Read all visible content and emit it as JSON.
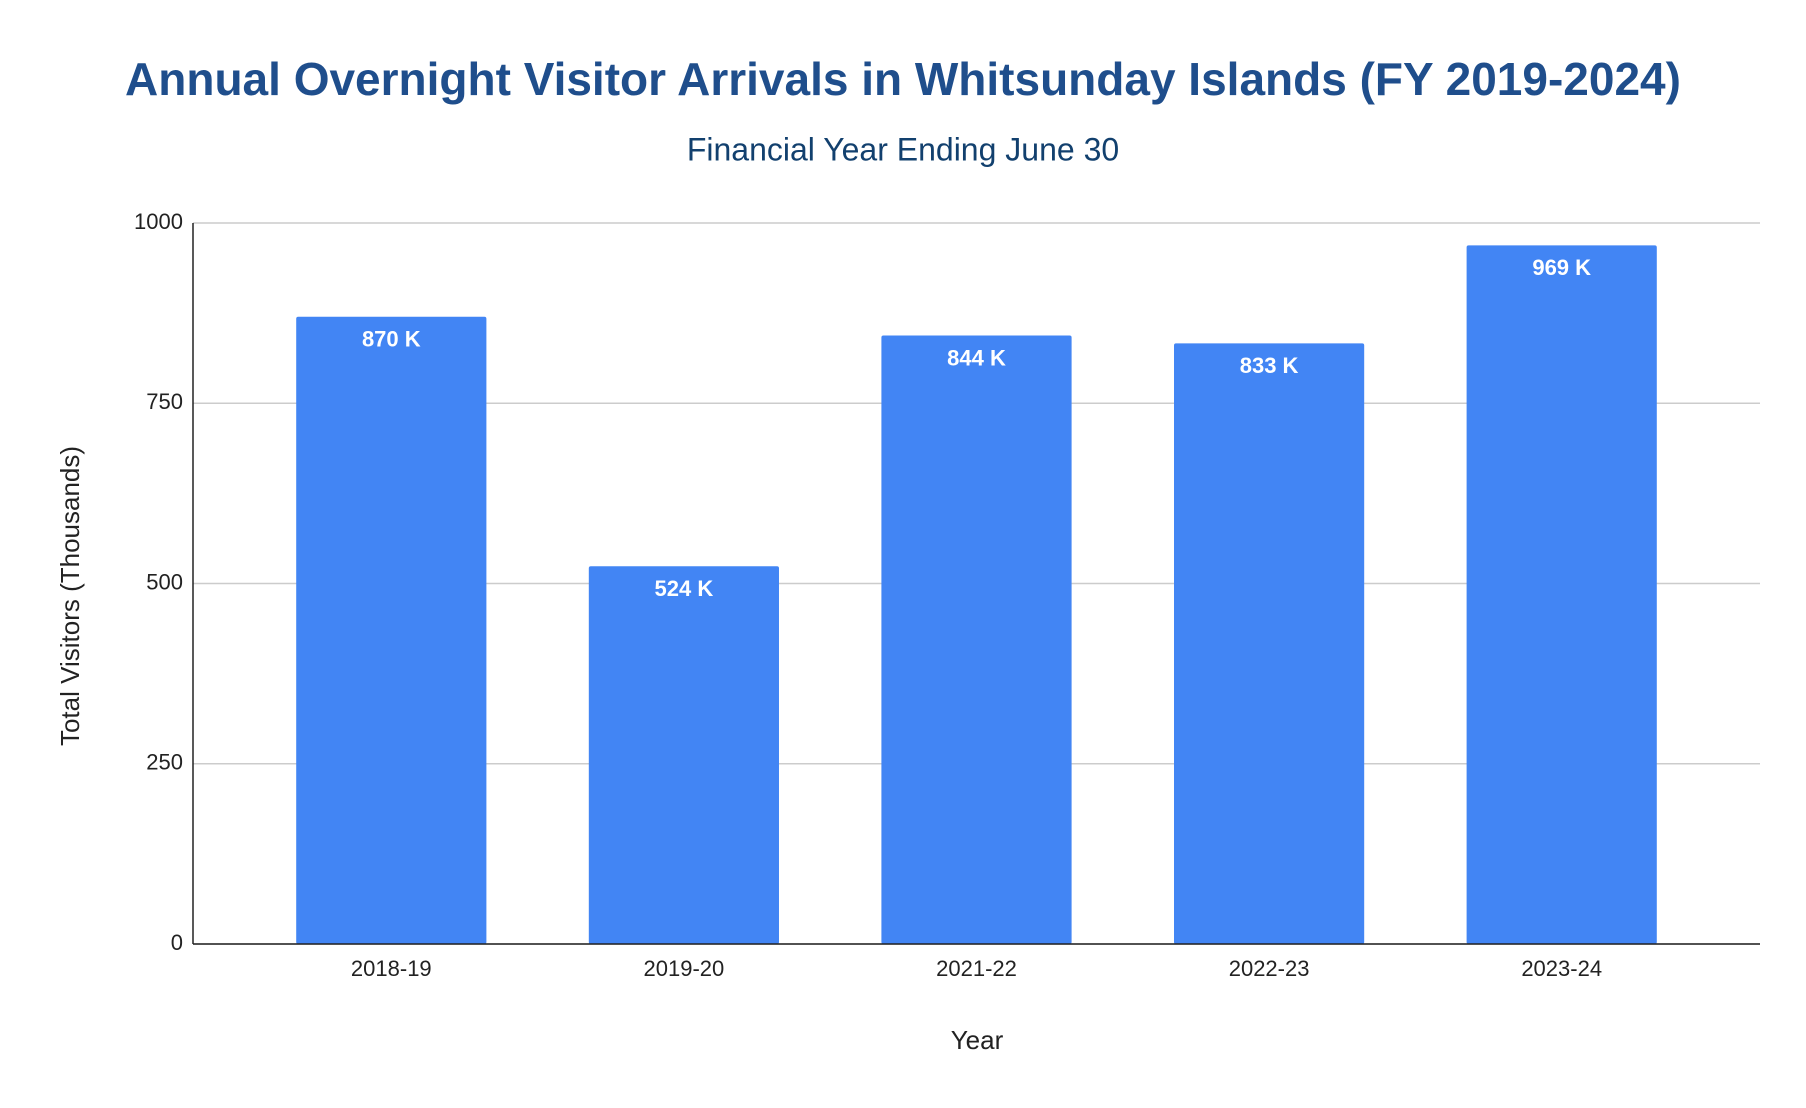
{
  "chart_data": {
    "type": "bar",
    "title": "Annual Overnight Visitor Arrivals in Whitsunday Islands (FY 2019-2024)",
    "subtitle": "Financial Year Ending June 30",
    "x_label": "Year",
    "y_label": "Total Visitors (Thousands)",
    "categories": [
      "2018-19",
      "2019-20",
      "2021-22",
      "2022-23",
      "2023-24"
    ],
    "values": [
      870,
      524,
      844,
      833,
      969
    ],
    "value_labels": [
      "870 K",
      "524 K",
      "844 K",
      "833 K",
      "969 K"
    ],
    "color": "#4285f4",
    "ylim": [
      0,
      1000
    ],
    "yticks": [
      0,
      250,
      500,
      750,
      1000
    ],
    "grid": true
  }
}
